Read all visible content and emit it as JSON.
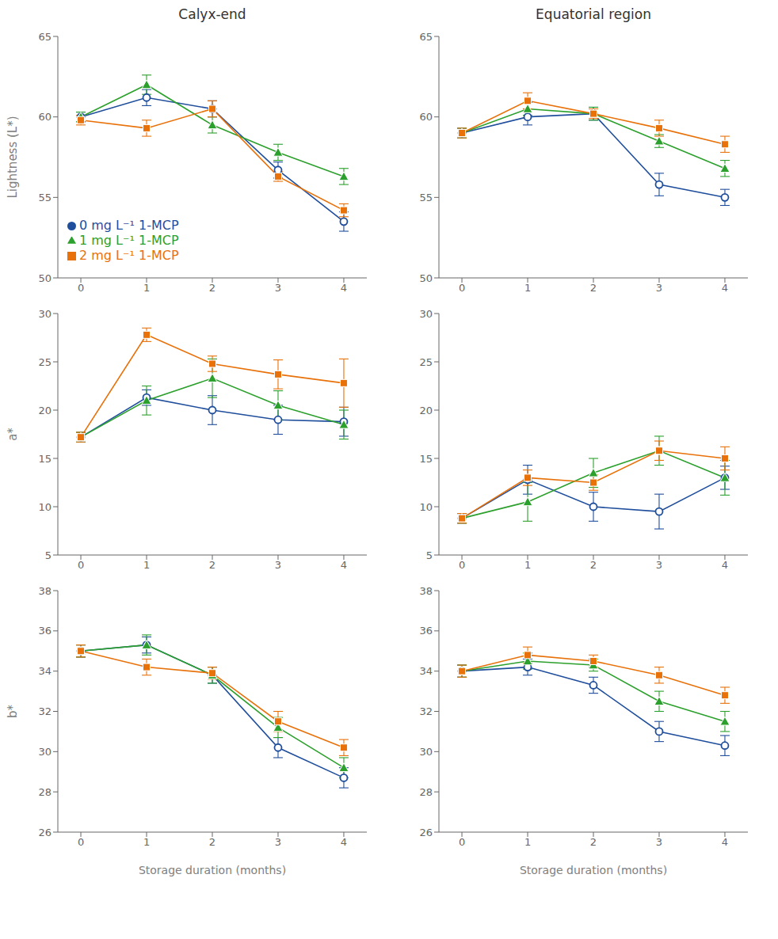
{
  "chart_data": [
    {
      "type": "line",
      "title": "Calyx-end",
      "ylabel": "Lightness (L*)",
      "x": [
        0,
        1,
        2,
        3,
        4
      ],
      "xlim": [
        -0.35,
        4.35
      ],
      "xticks": [
        0,
        1,
        2,
        3,
        4
      ],
      "ylim": [
        50,
        65
      ],
      "yticks": [
        50,
        55,
        60,
        65
      ],
      "grid": false,
      "legend": "lower left",
      "series": [
        {
          "name": "0 mg L⁻¹ 1-MCP",
          "color": "#1f4e9c",
          "marker": "circle",
          "values": [
            60.0,
            61.2,
            60.5,
            56.7,
            53.5
          ],
          "errors": [
            0.3,
            0.5,
            0.5,
            0.5,
            0.6
          ]
        },
        {
          "name": "1 mg L⁻¹ 1-MCP",
          "color": "#2ca02c",
          "marker": "triangle",
          "values": [
            60.0,
            62.0,
            59.5,
            57.8,
            56.3
          ],
          "errors": [
            0.3,
            0.6,
            0.5,
            0.5,
            0.5
          ]
        },
        {
          "name": "2 mg L⁻¹ 1-MCP",
          "color": "#e8710a",
          "marker": "square",
          "values": [
            59.8,
            59.3,
            60.5,
            56.3,
            54.2
          ],
          "errors": [
            0.3,
            0.5,
            0.5,
            0.3,
            0.4
          ]
        }
      ]
    },
    {
      "type": "line",
      "title": "Equatorial region",
      "x": [
        0,
        1,
        2,
        3,
        4
      ],
      "xlim": [
        -0.35,
        4.35
      ],
      "xticks": [
        0,
        1,
        2,
        3,
        4
      ],
      "ylim": [
        50,
        65
      ],
      "yticks": [
        50,
        55,
        60,
        65
      ],
      "grid": false,
      "series": [
        {
          "name": "0 mg L⁻¹ 1-MCP",
          "color": "#1f4e9c",
          "marker": "circle",
          "values": [
            59.0,
            60.0,
            60.2,
            55.8,
            55.0
          ],
          "errors": [
            0.3,
            0.5,
            0.4,
            0.7,
            0.5
          ]
        },
        {
          "name": "1 mg L⁻¹ 1-MCP",
          "color": "#2ca02c",
          "marker": "triangle",
          "values": [
            59.0,
            60.5,
            60.2,
            58.5,
            56.8
          ],
          "errors": [
            0.3,
            0.4,
            0.4,
            0.4,
            0.5
          ]
        },
        {
          "name": "2 mg L⁻¹ 1-MCP",
          "color": "#e8710a",
          "marker": "square",
          "values": [
            59.0,
            61.0,
            60.2,
            59.3,
            58.3
          ],
          "errors": [
            0.3,
            0.5,
            0.3,
            0.5,
            0.5
          ]
        }
      ]
    },
    {
      "type": "line",
      "ylabel": "a*",
      "x": [
        0,
        1,
        2,
        3,
        4
      ],
      "xlim": [
        -0.35,
        4.35
      ],
      "xticks": [
        0,
        1,
        2,
        3,
        4
      ],
      "ylim": [
        5,
        30
      ],
      "yticks": [
        5,
        10,
        15,
        20,
        25,
        30
      ],
      "grid": false,
      "series": [
        {
          "name": "0 mg L⁻¹ 1-MCP",
          "color": "#1f4e9c",
          "marker": "circle",
          "values": [
            17.2,
            21.3,
            20.0,
            19.0,
            18.8
          ],
          "errors": [
            0.5,
            0.8,
            1.5,
            1.5,
            1.5
          ]
        },
        {
          "name": "1 mg L⁻¹ 1-MCP",
          "color": "#2ca02c",
          "marker": "triangle",
          "values": [
            17.2,
            21.0,
            23.3,
            20.5,
            18.5
          ],
          "errors": [
            0.5,
            1.5,
            2.0,
            1.5,
            1.5
          ]
        },
        {
          "name": "2 mg L⁻¹ 1-MCP",
          "color": "#e8710a",
          "marker": "square",
          "values": [
            17.2,
            27.8,
            24.8,
            23.7,
            22.8
          ],
          "errors": [
            0.5,
            0.7,
            0.8,
            1.5,
            2.5
          ]
        }
      ]
    },
    {
      "type": "line",
      "x": [
        0,
        1,
        2,
        3,
        4
      ],
      "xlim": [
        -0.35,
        4.35
      ],
      "xticks": [
        0,
        1,
        2,
        3,
        4
      ],
      "ylim": [
        5,
        30
      ],
      "yticks": [
        5,
        10,
        15,
        20,
        25,
        30
      ],
      "grid": false,
      "series": [
        {
          "name": "0 mg L⁻¹ 1-MCP",
          "color": "#1f4e9c",
          "marker": "circle",
          "values": [
            8.8,
            12.8,
            10.0,
            9.5,
            13.0
          ],
          "errors": [
            0.5,
            1.5,
            1.5,
            1.8,
            1.2
          ]
        },
        {
          "name": "1 mg L⁻¹ 1-MCP",
          "color": "#2ca02c",
          "marker": "triangle",
          "values": [
            8.8,
            10.5,
            13.5,
            15.8,
            13.0
          ],
          "errors": [
            0.5,
            2.0,
            1.5,
            1.5,
            1.8
          ]
        },
        {
          "name": "2 mg L⁻¹ 1-MCP",
          "color": "#e8710a",
          "marker": "square",
          "values": [
            8.8,
            13.0,
            12.5,
            15.8,
            15.0
          ],
          "errors": [
            0.5,
            0.8,
            0.8,
            1.0,
            1.2
          ]
        }
      ]
    },
    {
      "type": "line",
      "ylabel": "b*",
      "xlabel": "Storage duration (months)",
      "x": [
        0,
        1,
        2,
        3,
        4
      ],
      "xlim": [
        -0.35,
        4.35
      ],
      "xticks": [
        0,
        1,
        2,
        3,
        4
      ],
      "ylim": [
        26,
        38
      ],
      "yticks": [
        26,
        28,
        30,
        32,
        34,
        36,
        38
      ],
      "grid": false,
      "series": [
        {
          "name": "0 mg L⁻¹ 1-MCP",
          "color": "#1f4e9c",
          "marker": "circle",
          "values": [
            35.0,
            35.3,
            33.8,
            30.2,
            28.7
          ],
          "errors": [
            0.3,
            0.4,
            0.4,
            0.5,
            0.5
          ]
        },
        {
          "name": "1 mg L⁻¹ 1-MCP",
          "color": "#2ca02c",
          "marker": "triangle",
          "values": [
            35.0,
            35.3,
            33.8,
            31.2,
            29.2
          ],
          "errors": [
            0.3,
            0.5,
            0.4,
            0.5,
            0.5
          ]
        },
        {
          "name": "2 mg L⁻¹ 1-MCP",
          "color": "#e8710a",
          "marker": "square",
          "values": [
            35.0,
            34.2,
            33.9,
            31.5,
            30.2
          ],
          "errors": [
            0.3,
            0.4,
            0.3,
            0.5,
            0.4
          ]
        }
      ]
    },
    {
      "type": "line",
      "xlabel": "Storage duration (months)",
      "x": [
        0,
        1,
        2,
        3,
        4
      ],
      "xlim": [
        -0.35,
        4.35
      ],
      "xticks": [
        0,
        1,
        2,
        3,
        4
      ],
      "ylim": [
        26,
        38
      ],
      "yticks": [
        26,
        28,
        30,
        32,
        34,
        36,
        38
      ],
      "grid": false,
      "series": [
        {
          "name": "0 mg L⁻¹ 1-MCP",
          "color": "#1f4e9c",
          "marker": "circle",
          "values": [
            34.0,
            34.2,
            33.3,
            31.0,
            30.3
          ],
          "errors": [
            0.3,
            0.4,
            0.4,
            0.5,
            0.5
          ]
        },
        {
          "name": "1 mg L⁻¹ 1-MCP",
          "color": "#2ca02c",
          "marker": "triangle",
          "values": [
            34.0,
            34.5,
            34.3,
            32.5,
            31.5
          ],
          "errors": [
            0.3,
            0.4,
            0.3,
            0.5,
            0.5
          ]
        },
        {
          "name": "2 mg L⁻¹ 1-MCP",
          "color": "#e8710a",
          "marker": "square",
          "values": [
            34.0,
            34.8,
            34.5,
            33.8,
            32.8
          ],
          "errors": [
            0.3,
            0.4,
            0.3,
            0.4,
            0.4
          ]
        }
      ]
    }
  ]
}
